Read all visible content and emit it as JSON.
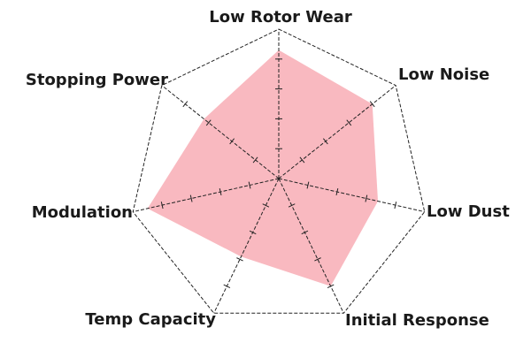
{
  "chart_data": {
    "type": "radar",
    "categories": [
      "Low Rotor Wear",
      "Low Noise",
      "Low Dust",
      "Initial Response",
      "Temp Capacity",
      "Modulation",
      "Stopping Power"
    ],
    "values": [
      4.3,
      4.0,
      3.4,
      4.0,
      2.9,
      4.5,
      3.2
    ],
    "color": "#f7a8b0",
    "ylim": [
      0,
      5
    ],
    "yticks": [
      1,
      2,
      3,
      4
    ]
  }
}
